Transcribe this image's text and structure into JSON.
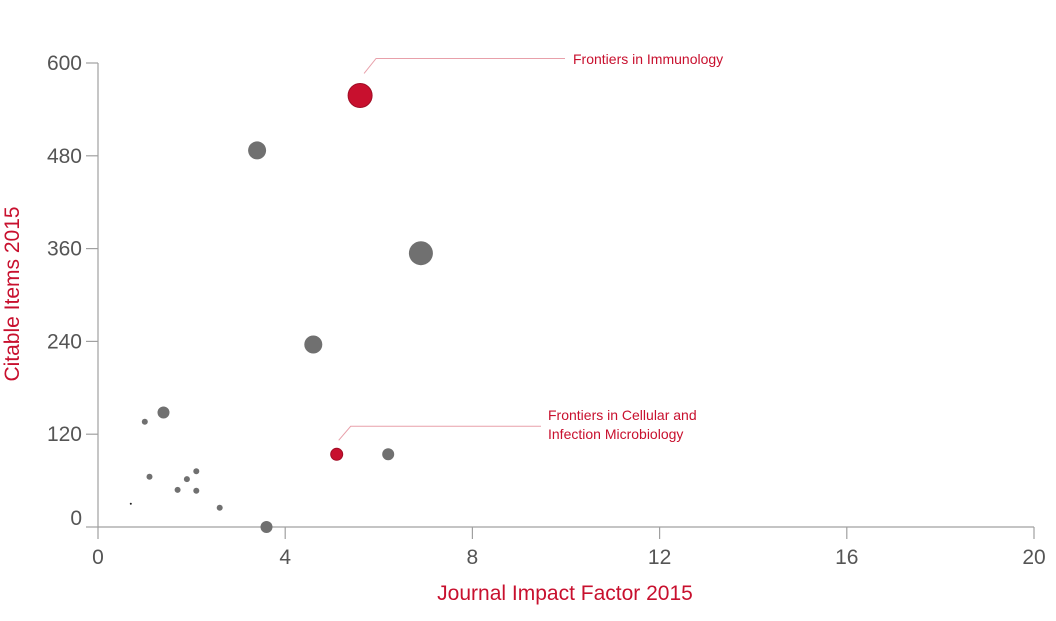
{
  "chart_data": {
    "type": "scatter",
    "xlabel": "Journal Impact Factor 2015",
    "ylabel": "Citable Items 2015",
    "xlim": [
      0,
      20
    ],
    "ylim": [
      0,
      600
    ],
    "x_ticks": [
      "0",
      "4",
      "8",
      "12",
      "16",
      "20"
    ],
    "y_ticks": [
      "0",
      "120",
      "240",
      "360",
      "480",
      "600"
    ],
    "grid": false,
    "colors": {
      "highlight": "#c8102e",
      "default": "#707070",
      "axis": "#a0a0a0",
      "tick_text": "#555555"
    },
    "points": [
      {
        "x": 5.6,
        "y": 558,
        "size": 3,
        "highlight": true
      },
      {
        "x": 3.4,
        "y": 487,
        "size": 2,
        "highlight": false
      },
      {
        "x": 6.9,
        "y": 354,
        "size": 3,
        "highlight": false
      },
      {
        "x": 4.6,
        "y": 236,
        "size": 2,
        "highlight": false
      },
      {
        "x": 1.4,
        "y": 148,
        "size": 1,
        "highlight": false
      },
      {
        "x": 1.0,
        "y": 136,
        "size": 0,
        "highlight": false
      },
      {
        "x": 5.1,
        "y": 94,
        "size": 1,
        "highlight": true
      },
      {
        "x": 6.2,
        "y": 94,
        "size": 1,
        "highlight": false
      },
      {
        "x": 2.1,
        "y": 72,
        "size": 0,
        "highlight": false
      },
      {
        "x": 1.1,
        "y": 65,
        "size": 0,
        "highlight": false
      },
      {
        "x": 1.9,
        "y": 62,
        "size": 0,
        "highlight": false
      },
      {
        "x": 1.7,
        "y": 48,
        "size": 0,
        "highlight": false
      },
      {
        "x": 2.1,
        "y": 47,
        "size": 0,
        "highlight": false
      },
      {
        "x": 0.7,
        "y": 30,
        "size": -1,
        "highlight": false
      },
      {
        "x": 2.6,
        "y": 25,
        "size": 0,
        "highlight": false
      },
      {
        "x": 3.6,
        "y": 0,
        "size": 1,
        "highlight": false
      }
    ],
    "annotations": [
      {
        "lines": [
          "Frontiers in Immunology"
        ],
        "point_index": 0
      },
      {
        "lines": [
          "Frontiers in Cellular and",
          "Infection Microbiology"
        ],
        "point_index": 6
      }
    ]
  }
}
